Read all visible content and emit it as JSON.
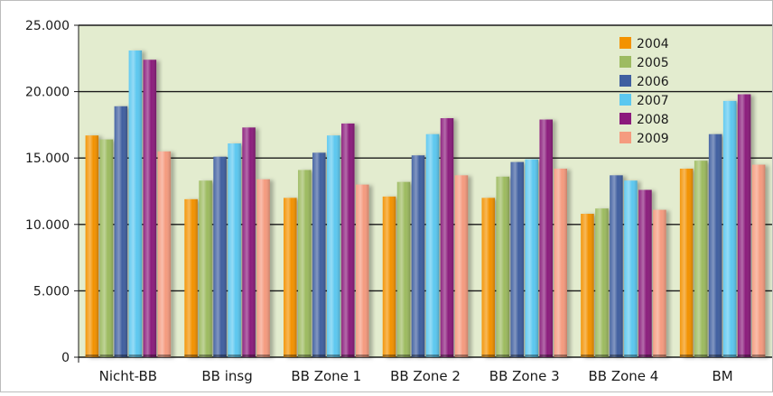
{
  "chart_data": {
    "type": "bar",
    "categories": [
      "Nicht-BB",
      "BB insg",
      "BB Zone 1",
      "BB Zone 2",
      "BB Zone 3",
      "BB Zone 4",
      "BM"
    ],
    "series": [
      {
        "name": "2004",
        "color": "#f39200",
        "values": [
          16700,
          11900,
          12000,
          12100,
          12000,
          10800,
          14200
        ]
      },
      {
        "name": "2005",
        "color": "#9dbb61",
        "values": [
          16400,
          13300,
          14100,
          13200,
          13600,
          11200,
          14800
        ]
      },
      {
        "name": "2006",
        "color": "#3f5fa0",
        "values": [
          18900,
          15100,
          15400,
          15200,
          14700,
          13700,
          16800
        ]
      },
      {
        "name": "2007",
        "color": "#5bc8f0",
        "values": [
          23100,
          16100,
          16700,
          16800,
          14900,
          13300,
          19300
        ]
      },
      {
        "name": "2008",
        "color": "#8b1a7c",
        "values": [
          22400,
          17300,
          17600,
          18000,
          17900,
          12600,
          19800
        ]
      },
      {
        "name": "2009",
        "color": "#f59b7f",
        "values": [
          15500,
          13400,
          13000,
          13700,
          14200,
          11100,
          14500
        ]
      }
    ],
    "y_ticks": [
      "0",
      "5.000",
      "10.000",
      "15.000",
      "20.000",
      "25.000"
    ],
    "ylim": [
      0,
      25000
    ],
    "grid": true,
    "legend_position": "top-right",
    "plot_background": "#e3eccf"
  }
}
